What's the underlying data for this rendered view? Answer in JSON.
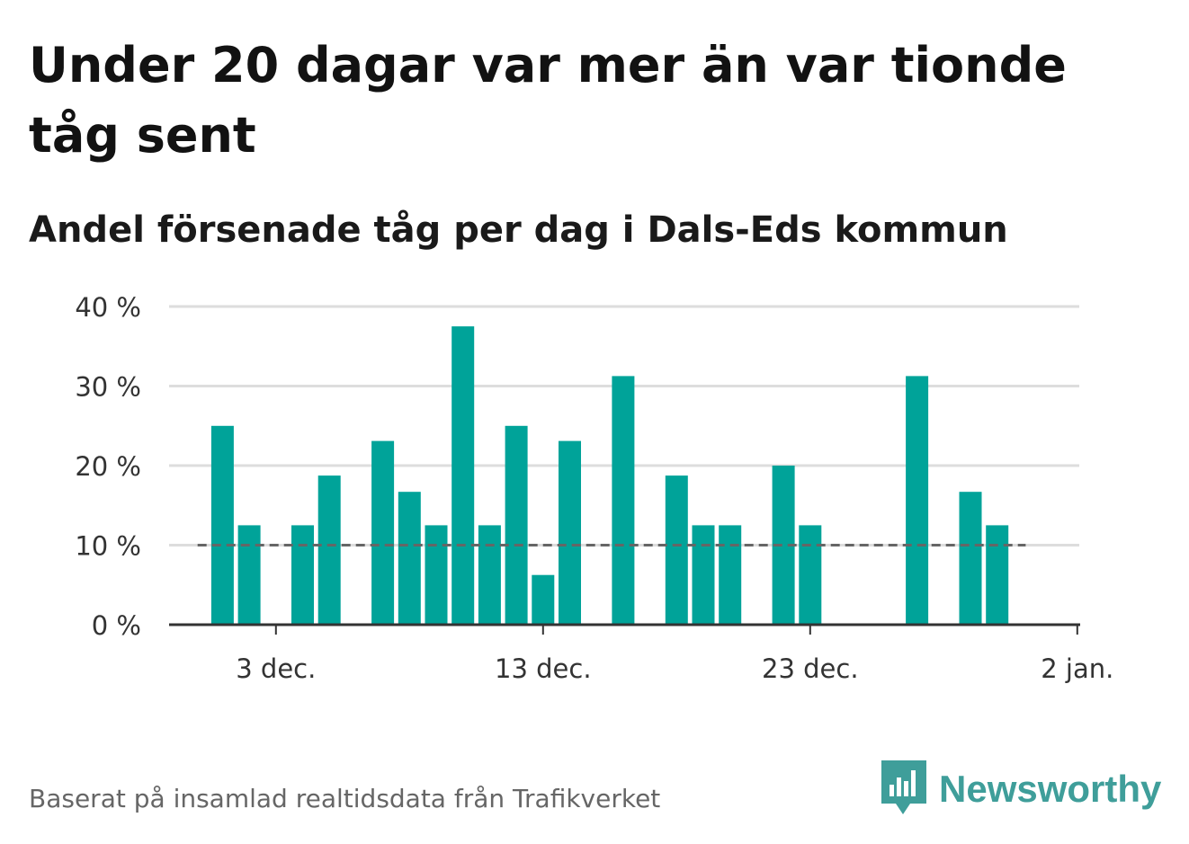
{
  "title": "Under 20 dagar var mer än var tionde tåg sent",
  "subtitle": "Andel försenade tåg per dag i Dals-Eds kommun",
  "source": "Baserat på insamlad realtidsdata från Trafikverket",
  "brand": {
    "name": "Newsworthy",
    "icon": "newsworthy-logo-icon",
    "color": "#3f9e9a"
  },
  "colors": {
    "bar": "#00a399",
    "reference_line": "#666666",
    "grid": "#dddddd",
    "axis": "#333333",
    "text": "#333333"
  },
  "chart_data": {
    "type": "bar",
    "x_axis": "date",
    "y_unit": "%",
    "ylim": [
      0,
      40
    ],
    "y_ticks": [
      0,
      10,
      20,
      30,
      40
    ],
    "y_tick_labels": [
      "0 %",
      "10 %",
      "20 %",
      "30 %",
      "40 %"
    ],
    "x_range": [
      "2020-11-29",
      "2021-01-02"
    ],
    "x_ticks": [
      "2020-12-03",
      "2020-12-13",
      "2020-12-23",
      "2021-01-02"
    ],
    "x_tick_labels": [
      "3 dec.",
      "13 dec.",
      "23 dec.",
      "2 jan."
    ],
    "grid": true,
    "reference_line": 10,
    "reference_line_range": [
      "2020-11-30",
      "2020-12-31"
    ],
    "points": [
      {
        "date": "2020-12-01",
        "value": 25
      },
      {
        "date": "2020-12-02",
        "value": 12.5
      },
      {
        "date": "2020-12-03",
        "value": 0
      },
      {
        "date": "2020-12-04",
        "value": 12.5
      },
      {
        "date": "2020-12-05",
        "value": 18.75
      },
      {
        "date": "2020-12-06",
        "value": 0
      },
      {
        "date": "2020-12-07",
        "value": 23.1
      },
      {
        "date": "2020-12-08",
        "value": 16.7
      },
      {
        "date": "2020-12-09",
        "value": 12.5
      },
      {
        "date": "2020-12-10",
        "value": 37.5
      },
      {
        "date": "2020-12-11",
        "value": 12.5
      },
      {
        "date": "2020-12-12",
        "value": 25
      },
      {
        "date": "2020-12-13",
        "value": 6.25
      },
      {
        "date": "2020-12-14",
        "value": 23.1
      },
      {
        "date": "2020-12-15",
        "value": 0
      },
      {
        "date": "2020-12-16",
        "value": 31.25
      },
      {
        "date": "2020-12-17",
        "value": 0
      },
      {
        "date": "2020-12-18",
        "value": 18.75
      },
      {
        "date": "2020-12-19",
        "value": 12.5
      },
      {
        "date": "2020-12-20",
        "value": 12.5
      },
      {
        "date": "2020-12-21",
        "value": 0
      },
      {
        "date": "2020-12-22",
        "value": 20
      },
      {
        "date": "2020-12-23",
        "value": 12.5
      },
      {
        "date": "2020-12-24",
        "value": 0
      },
      {
        "date": "2020-12-25",
        "value": 0
      },
      {
        "date": "2020-12-26",
        "value": 0
      },
      {
        "date": "2020-12-27",
        "value": 31.25
      },
      {
        "date": "2020-12-28",
        "value": 0
      },
      {
        "date": "2020-12-29",
        "value": 16.7
      },
      {
        "date": "2020-12-30",
        "value": 12.5
      }
    ]
  }
}
